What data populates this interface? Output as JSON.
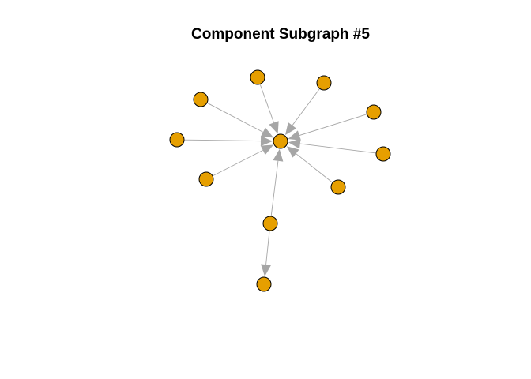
{
  "diagram": {
    "title": "Component Subgraph #5",
    "colors": {
      "node_fill": "#E69F00",
      "node_stroke": "#000000",
      "edge": "#A6A6A6",
      "background": "#FFFFFF"
    },
    "nodes": [
      {
        "id": "hub"
      },
      {
        "id": "n1"
      },
      {
        "id": "n2"
      },
      {
        "id": "n3"
      },
      {
        "id": "n4"
      },
      {
        "id": "n5"
      },
      {
        "id": "n6"
      },
      {
        "id": "n7"
      },
      {
        "id": "n8"
      },
      {
        "id": "n9"
      },
      {
        "id": "n10"
      },
      {
        "id": "n11"
      }
    ],
    "edges": [
      {
        "from": "n1",
        "to": "hub"
      },
      {
        "from": "n2",
        "to": "hub"
      },
      {
        "from": "n3",
        "to": "hub"
      },
      {
        "from": "n4",
        "to": "hub"
      },
      {
        "from": "n5",
        "to": "hub"
      },
      {
        "from": "n6",
        "to": "hub"
      },
      {
        "from": "n7",
        "to": "hub"
      },
      {
        "from": "n8",
        "to": "hub"
      },
      {
        "from": "n9",
        "to": "hub"
      },
      {
        "from": "n10",
        "to": "hub"
      },
      {
        "from": "n10",
        "to": "n11"
      }
    ]
  }
}
